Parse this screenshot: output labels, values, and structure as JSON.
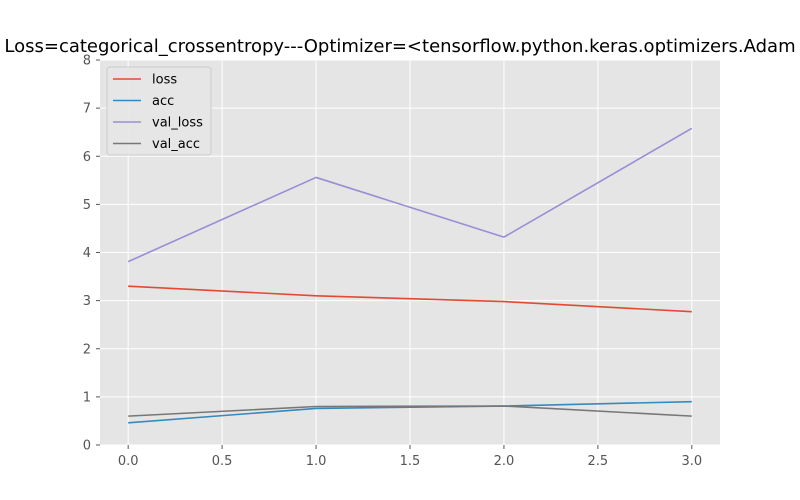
{
  "chart_data": {
    "type": "line",
    "title": "Loss=categorical_crossentropy---Optimizer=<tensorflow.python.keras.optimizers.Adam",
    "xlabel": "",
    "ylabel": "",
    "xlim": [
      -0.15,
      3.15
    ],
    "ylim": [
      0,
      8
    ],
    "x_ticks": [
      0.0,
      0.5,
      1.0,
      1.5,
      2.0,
      2.5,
      3.0
    ],
    "x_tick_labels": [
      "0.0",
      "0.5",
      "1.0",
      "1.5",
      "2.0",
      "2.5",
      "3.0"
    ],
    "y_ticks": [
      0,
      1,
      2,
      3,
      4,
      5,
      6,
      7,
      8
    ],
    "y_tick_labels": [
      "0",
      "1",
      "2",
      "3",
      "4",
      "5",
      "6",
      "7",
      "8"
    ],
    "grid": true,
    "legend_position": "top-left",
    "x": [
      0,
      1,
      2,
      3
    ],
    "series": [
      {
        "name": "loss",
        "color": "#E24A33",
        "values": [
          3.3,
          3.1,
          2.98,
          2.77
        ]
      },
      {
        "name": "acc",
        "color": "#348ABD",
        "values": [
          0.46,
          0.76,
          0.81,
          0.9
        ]
      },
      {
        "name": "val_loss",
        "color": "#988ED5",
        "values": [
          3.81,
          5.56,
          4.32,
          6.58
        ]
      },
      {
        "name": "val_acc",
        "color": "#777777",
        "values": [
          0.6,
          0.8,
          0.81,
          0.6
        ]
      }
    ]
  }
}
